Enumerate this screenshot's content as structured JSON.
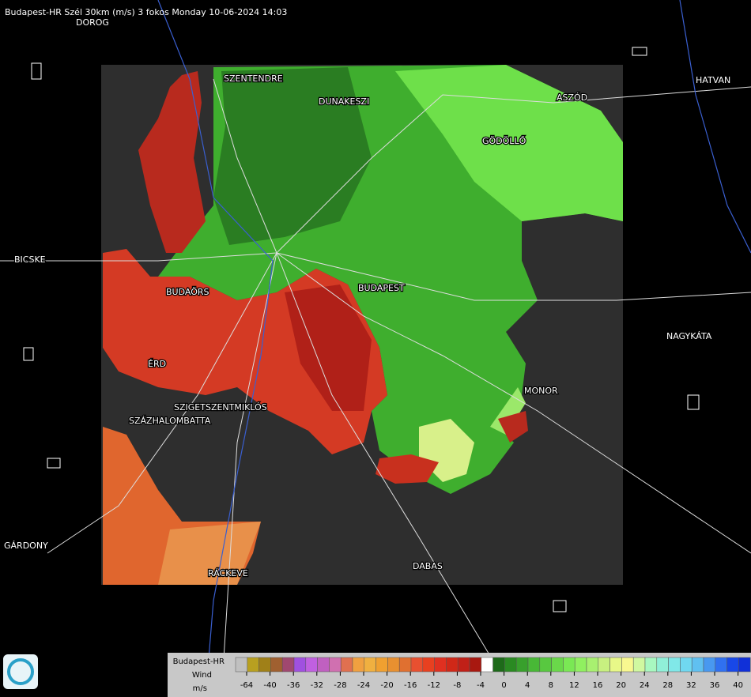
{
  "header": {
    "title": "Budapest-HR Szél 30km (m/s) 3 fokos Monday 10-06-2024 14:03"
  },
  "places": [
    "DOROG",
    "SZENTENDRE",
    "DUNAKESZI",
    "ASZÓD",
    "HATVAN",
    "GÖDÖLLŐ",
    "BICSKE",
    "BUDAPEST",
    "BUDAÖRS",
    "NAGYKÁTA",
    "ÉRD",
    "MONOR",
    "SZIGETSZENTMIKLÓS",
    "SZÁZHALOMBATTA",
    "GÁRDONY",
    "DABAS",
    "RÁCKEVE"
  ],
  "legend": {
    "title": [
      "Budapest-HR",
      "Wind",
      "m/s"
    ],
    "ticks": [
      -64,
      -40,
      -36,
      -32,
      -28,
      -24,
      -20,
      -16,
      -12,
      -8,
      -4,
      0,
      4,
      8,
      12,
      16,
      20,
      24,
      28,
      32,
      36,
      40
    ]
  }
}
